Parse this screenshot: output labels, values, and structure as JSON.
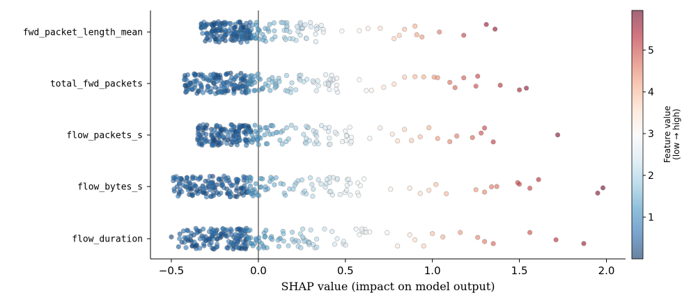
{
  "chart_data": {
    "type": "scatter",
    "subtype": "shap-beeswarm",
    "title": "",
    "xlabel": "SHAP value (impact on model output)",
    "ylabel": "",
    "xlim": [
      -0.62,
      2.11
    ],
    "xticks": [
      -0.5,
      0.0,
      0.5,
      1.0,
      1.5,
      2.0
    ],
    "xtick_labels": [
      "−0.5",
      "0.0",
      "0.5",
      "1.0",
      "1.5",
      "2.0"
    ],
    "features": [
      "fwd_packet_length_mean",
      "total_fwd_packets",
      "flow_packets_s",
      "flow_bytes_s",
      "flow_duration"
    ],
    "zero_line": true,
    "colormap": "RdBu_r",
    "point_alpha": 0.6,
    "point_stroke": "#555555",
    "colorbar": {
      "label_line1": "Feature value",
      "label_line2": "(low → high)",
      "range": [
        0.0,
        5.95
      ],
      "ticks": [
        1,
        2,
        3,
        4,
        5
      ],
      "tick_labels": [
        "1",
        "2",
        "3",
        "4",
        "5"
      ],
      "stops": [
        "#053061",
        "#2166ac",
        "#4393c3",
        "#92c5de",
        "#d1e5f0",
        "#f7f7f7",
        "#fddbc7",
        "#f4a582",
        "#d6604d",
        "#b2182b",
        "#67001f"
      ]
    },
    "points": [
      {
        "feature": "fwd_packet_length_mean",
        "bulk": {
          "n": 150,
          "xmin": -0.33,
          "xmax": -0.04,
          "vmin": 0.2,
          "vmax": 0.9
        },
        "mid": {
          "n": 60,
          "xmin": -0.04,
          "xmax": 0.4,
          "vmin": 1.2,
          "vmax": 2.7
        },
        "tail": [
          [
            0.48,
            2.9
          ],
          [
            0.58,
            3.1
          ],
          [
            0.63,
            3.3
          ],
          [
            0.7,
            3.5
          ],
          [
            0.78,
            3.7
          ],
          [
            0.81,
            3.8
          ],
          [
            0.84,
            3.9
          ],
          [
            0.9,
            4.1
          ],
          [
            0.91,
            4.2
          ],
          [
            0.94,
            4.3
          ],
          [
            1.04,
            4.6
          ],
          [
            1.18,
            5.1
          ],
          [
            1.31,
            5.6
          ],
          [
            1.36,
            5.7
          ]
        ]
      },
      {
        "feature": "total_fwd_packets",
        "bulk": {
          "n": 140,
          "xmin": -0.43,
          "xmax": -0.06,
          "vmin": 0.2,
          "vmax": 1.0
        },
        "mid": {
          "n": 70,
          "xmin": -0.06,
          "xmax": 0.48,
          "vmin": 1.1,
          "vmax": 2.8
        },
        "tail": [
          [
            0.58,
            3.0
          ],
          [
            0.62,
            3.1
          ],
          [
            0.65,
            3.2
          ],
          [
            0.72,
            3.4
          ],
          [
            0.78,
            3.6
          ],
          [
            0.84,
            3.8
          ],
          [
            0.9,
            4.0
          ],
          [
            0.95,
            4.1
          ],
          [
            1.01,
            4.3
          ],
          [
            1.03,
            4.4
          ],
          [
            1.1,
            4.7
          ],
          [
            1.13,
            4.8
          ],
          [
            1.18,
            4.9
          ],
          [
            1.25,
            5.0
          ],
          [
            1.26,
            5.1
          ],
          [
            1.39,
            5.3
          ],
          [
            1.5,
            5.5
          ],
          [
            1.54,
            5.7
          ]
        ]
      },
      {
        "feature": "flow_packets_s",
        "bulk": {
          "n": 140,
          "xmin": -0.35,
          "xmax": -0.04,
          "vmin": 0.2,
          "vmax": 0.9
        },
        "mid": {
          "n": 70,
          "xmin": -0.04,
          "xmax": 0.56,
          "vmin": 1.1,
          "vmax": 2.9
        },
        "tail": [
          [
            0.64,
            3.1
          ],
          [
            0.7,
            3.3
          ],
          [
            0.77,
            3.5
          ],
          [
            0.8,
            3.6
          ],
          [
            0.84,
            3.7
          ],
          [
            0.88,
            3.8
          ],
          [
            0.93,
            3.9
          ],
          [
            0.98,
            4.0
          ],
          [
            1.03,
            4.3
          ],
          [
            1.1,
            4.5
          ],
          [
            1.14,
            4.6
          ],
          [
            1.23,
            4.8
          ],
          [
            1.28,
            5.0
          ],
          [
            1.3,
            5.1
          ],
          [
            1.35,
            5.2
          ],
          [
            1.72,
            5.8
          ]
        ]
      },
      {
        "feature": "flow_bytes_s",
        "bulk": {
          "n": 140,
          "xmin": -0.49,
          "xmax": -0.06,
          "vmin": 0.2,
          "vmax": 0.9
        },
        "mid": {
          "n": 70,
          "xmin": -0.06,
          "xmax": 0.62,
          "vmin": 1.1,
          "vmax": 2.9
        },
        "tail": [
          [
            0.76,
            3.2
          ],
          [
            0.87,
            3.4
          ],
          [
            0.93,
            3.6
          ],
          [
            0.98,
            3.7
          ],
          [
            1.02,
            3.9
          ],
          [
            1.08,
            4.0
          ],
          [
            1.25,
            4.3
          ],
          [
            1.3,
            4.5
          ],
          [
            1.34,
            4.6
          ],
          [
            1.37,
            4.7
          ],
          [
            1.49,
            5.0
          ],
          [
            1.5,
            5.1
          ],
          [
            1.56,
            5.1
          ],
          [
            1.61,
            5.3
          ],
          [
            1.95,
            5.8
          ],
          [
            1.98,
            5.9
          ]
        ]
      },
      {
        "feature": "flow_duration",
        "bulk": {
          "n": 140,
          "xmin": -0.46,
          "xmax": -0.06,
          "vmin": 0.2,
          "vmax": 0.9
        },
        "mid": {
          "n": 70,
          "xmin": -0.06,
          "xmax": 0.64,
          "vmin": 1.1,
          "vmax": 2.9
        },
        "tail": [
          [
            -0.5,
            0.2
          ],
          [
            0.74,
            3.1
          ],
          [
            0.8,
            3.3
          ],
          [
            0.87,
            3.4
          ],
          [
            0.9,
            3.6
          ],
          [
            0.95,
            3.7
          ],
          [
            1.0,
            3.9
          ],
          [
            1.06,
            4.1
          ],
          [
            1.16,
            4.3
          ],
          [
            1.26,
            4.5
          ],
          [
            1.3,
            4.6
          ],
          [
            1.35,
            4.8
          ],
          [
            1.56,
            5.0
          ],
          [
            1.71,
            5.3
          ],
          [
            1.87,
            5.6
          ]
        ]
      }
    ]
  }
}
